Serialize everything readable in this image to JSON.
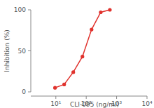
{
  "chart_data": {
    "type": "line",
    "x_label": "CLI-095 (ng/ml)",
    "y_label": "Inhibition (%)",
    "x": [
      9.4,
      18.8,
      37.5,
      75,
      150,
      300,
      600
    ],
    "values": [
      5,
      9,
      24,
      43,
      76,
      97,
      100
    ],
    "color": "#e0322d",
    "marker": "circle",
    "line_style": "solid",
    "log": "x",
    "xlim": [
      1.5,
      10000
    ],
    "xticks": [
      {
        "value": 10,
        "label": "10¹"
      },
      {
        "value": 100,
        "label": "10²"
      },
      {
        "value": 1000,
        "label": "10³"
      },
      {
        "value": 10000,
        "label": "10⁴"
      }
    ],
    "ylim": [
      0,
      100
    ],
    "yticks": [
      0,
      50,
      100
    ],
    "grid": false
  }
}
